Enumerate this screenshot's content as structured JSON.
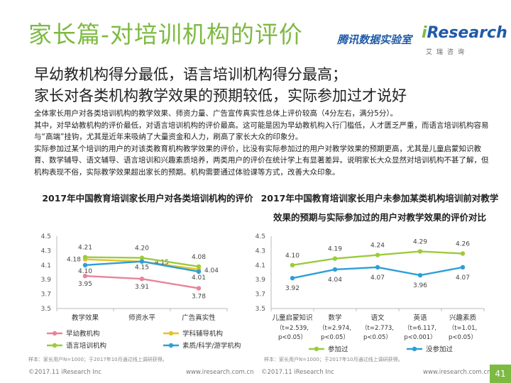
{
  "page": {
    "title": "家长篇-对培训机构的评价",
    "brand": "腾讯数据实验室",
    "logo_i": "i",
    "logo_rest": "Research",
    "logo_sub": "艾瑞咨询",
    "headline": [
      "早幼教机构得分最低，语言培训机构得分最高；",
      "家长对各类机构教学效果的预期较低，实际参加过才说好"
    ],
    "paragraphs": [
      "全体家长用户对各类培训机构的教学效果、师资力量、广告宣传真实性总体上评价较高（4分左右，满分5分）。",
      "其中，对早幼教机构的评价最低，对语言培训机构的评价最高。这可能是因为早幼教机构入行门槛低，人才匮乏严重，而语言培训机构容易与“高端”挂钩，尤其是近年来吸纳了大量资金和人力，刷高了家长大众的印象分。",
      "实际参加过某个培训的用户的对该类教育机构教学效果的评价，比没有实际参加过的用户对教学效果的预期更高，尤其是儿童启蒙知识教育、数学辅导、语文辅导、语言培训和兴趣素质培养，两类用户的评价在统计学上有显著差异。说明家长大众显然对培训机构不甚了解，但机构表现不俗，实际教学效果超出家长的预期。机构需要通过体验课等方式，改善大众印象。"
    ],
    "source_left": "样本：家长用户N=1000；于2017年10月通过线上调研获得。",
    "source_right": "样本：家长用户N=1000；于2017年10月通过线上调研获得。",
    "footer_left": "©2017.11 iResearch Inc",
    "footer_mid1": "www.iresearch.com.cn",
    "footer_mid2": "©2017.11 iResearch Inc",
    "footer_right": "www.iresearch.com.cn",
    "page_number": "41"
  },
  "colors": {
    "green": "#7dba42",
    "blue": "#1f5aa8",
    "pink": "#e8849a",
    "yellow": "#e6c229",
    "lime": "#9ccb3b",
    "cyan": "#2d9fd8"
  },
  "chart_data": [
    {
      "type": "line",
      "title": "2017年中国教育培训家长用户对各类培训机构的评价",
      "categories": [
        "教学效果",
        "师资水平",
        "广告真实性"
      ],
      "ylim": [
        3.5,
        4.5
      ],
      "yticks": [
        "4.5",
        "4.3",
        "4.1",
        "3.9",
        "3.7",
        "3.5"
      ],
      "series": [
        {
          "name": "早幼教机构",
          "color": "#e8849a",
          "values": [
            3.95,
            3.91,
            3.78
          ],
          "value_labels": [
            "3.95",
            "3.91",
            "3.78"
          ]
        },
        {
          "name": "学科辅导机构",
          "color": "#e6c229",
          "values": [
            4.18,
            4.15,
            4.04
          ],
          "value_labels": [
            "4.18",
            "4.15",
            "4.04"
          ]
        },
        {
          "name": "语言培训机构",
          "color": "#9ccb3b",
          "values": [
            4.21,
            4.2,
            4.08
          ],
          "value_labels": [
            "4.21",
            "4.20",
            "4.08"
          ]
        },
        {
          "name": "素质/科学/游学机构",
          "color": "#2d9fd8",
          "values": [
            4.1,
            4.15,
            4.01
          ],
          "value_labels": [
            "4.10",
            "4.15",
            "4.01"
          ]
        }
      ]
    },
    {
      "type": "line",
      "title": "2017年中国教育培训家长用户未参加某类机构培训前对教学效果的预期与实际参加过的用户对教学效果的评价对比",
      "categories": [
        "儿童启蒙知识",
        "数学",
        "语文",
        "英语",
        "兴趣素质"
      ],
      "category_stats": [
        [
          "（t=2.539,",
          "p<0.05）"
        ],
        [
          "（t=2.974,",
          "p<0.05）"
        ],
        [
          "（t=2.773,",
          "p<0.05）"
        ],
        [
          "（t=6.117,",
          "p<0.001）"
        ],
        [
          "（t=1.01,",
          "p<0.05）"
        ]
      ],
      "ylim": [
        3.5,
        4.5
      ],
      "yticks": [
        "4.5",
        "4.3",
        "4.1",
        "3.9",
        "3.7",
        "3.5"
      ],
      "series": [
        {
          "name": "参加过",
          "color": "#9ccb3b",
          "values": [
            4.1,
            4.19,
            4.24,
            4.29,
            4.26
          ],
          "value_labels": [
            "4.10",
            "4.19",
            "4.24",
            "4.29",
            "4.26"
          ]
        },
        {
          "name": "没参加过",
          "color": "#2d9fd8",
          "values": [
            3.92,
            4.04,
            4.07,
            3.96,
            4.07
          ],
          "value_labels": [
            "3.92",
            "4.04",
            "4.07",
            "3.96",
            "4.07"
          ]
        }
      ]
    }
  ]
}
